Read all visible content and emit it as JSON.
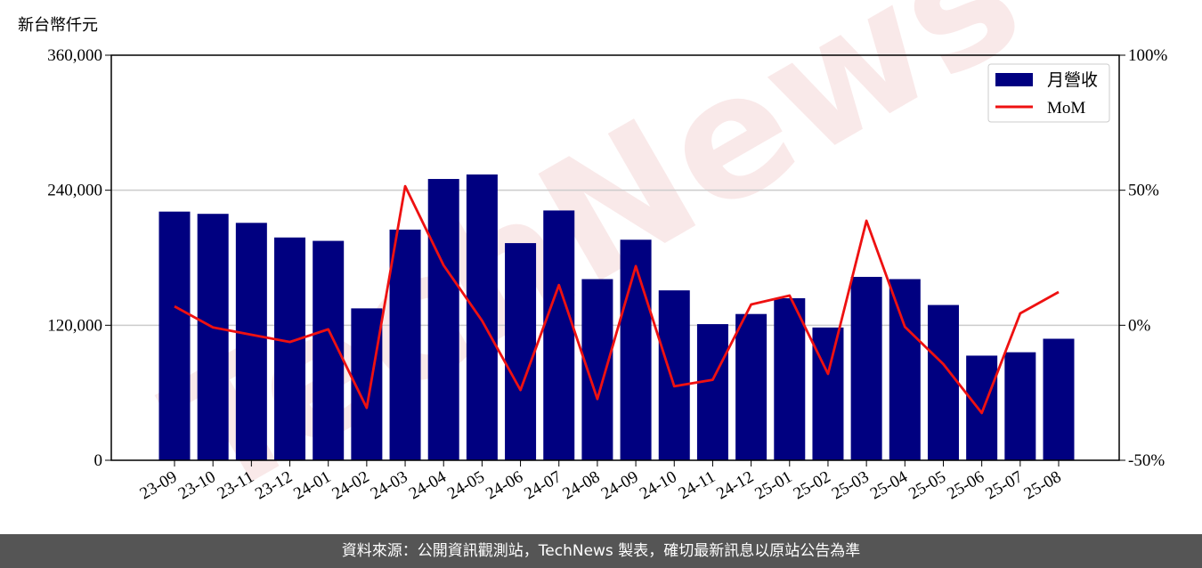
{
  "chart_data": {
    "type": "bar",
    "y_label": "新台幣仟元",
    "watermark": "TechNews",
    "categories": [
      "23-09",
      "23-10",
      "23-11",
      "23-12",
      "24-01",
      "24-02",
      "24-03",
      "24-04",
      "24-05",
      "24-06",
      "24-07",
      "24-08",
      "24-09",
      "24-10",
      "24-11",
      "24-12",
      "25-01",
      "25-02",
      "25-03",
      "25-04",
      "25-05",
      "25-06",
      "25-07",
      "25-08"
    ],
    "series": [
      {
        "name": "月營收",
        "type": "bar",
        "color": "#000080",
        "values": [
          221000,
          219000,
          211000,
          198000,
          195000,
          135000,
          205000,
          250000,
          254000,
          193000,
          222000,
          161000,
          196000,
          151000,
          121000,
          130000,
          144000,
          118000,
          163000,
          161000,
          138000,
          93000,
          96000,
          108000
        ]
      },
      {
        "name": "MoM",
        "type": "line",
        "axis": "y2",
        "color": "#ee1111",
        "values": [
          7.0,
          -0.8,
          -3.5,
          -6.2,
          -1.5,
          -30.6,
          51.5,
          22.2,
          1.7,
          -24.0,
          14.9,
          -27.3,
          21.9,
          -22.6,
          -20.2,
          7.7,
          11.0,
          -18.0,
          38.7,
          -0.6,
          -14.4,
          -32.5,
          4.4,
          12.3
        ]
      }
    ],
    "ylim": [
      0,
      360000
    ],
    "yticks": [
      0,
      {
        "value": 120000,
        "label": "120,000"
      },
      {
        "value": 240000,
        "label": "240,000"
      },
      {
        "value": 360000,
        "label": "360,000"
      }
    ],
    "y2lim": [
      -50,
      100
    ],
    "y2ticks": [
      {
        "value": -50,
        "label": "-50%"
      },
      {
        "value": 0,
        "label": "0%"
      },
      {
        "value": 50,
        "label": "50%"
      },
      {
        "value": 100,
        "label": "100%"
      }
    ],
    "grid": true,
    "legend": "upper right"
  },
  "footer": "資料來源：公開資訊觀測站，TechNews 製表，確切最新訊息以原站公告為準"
}
